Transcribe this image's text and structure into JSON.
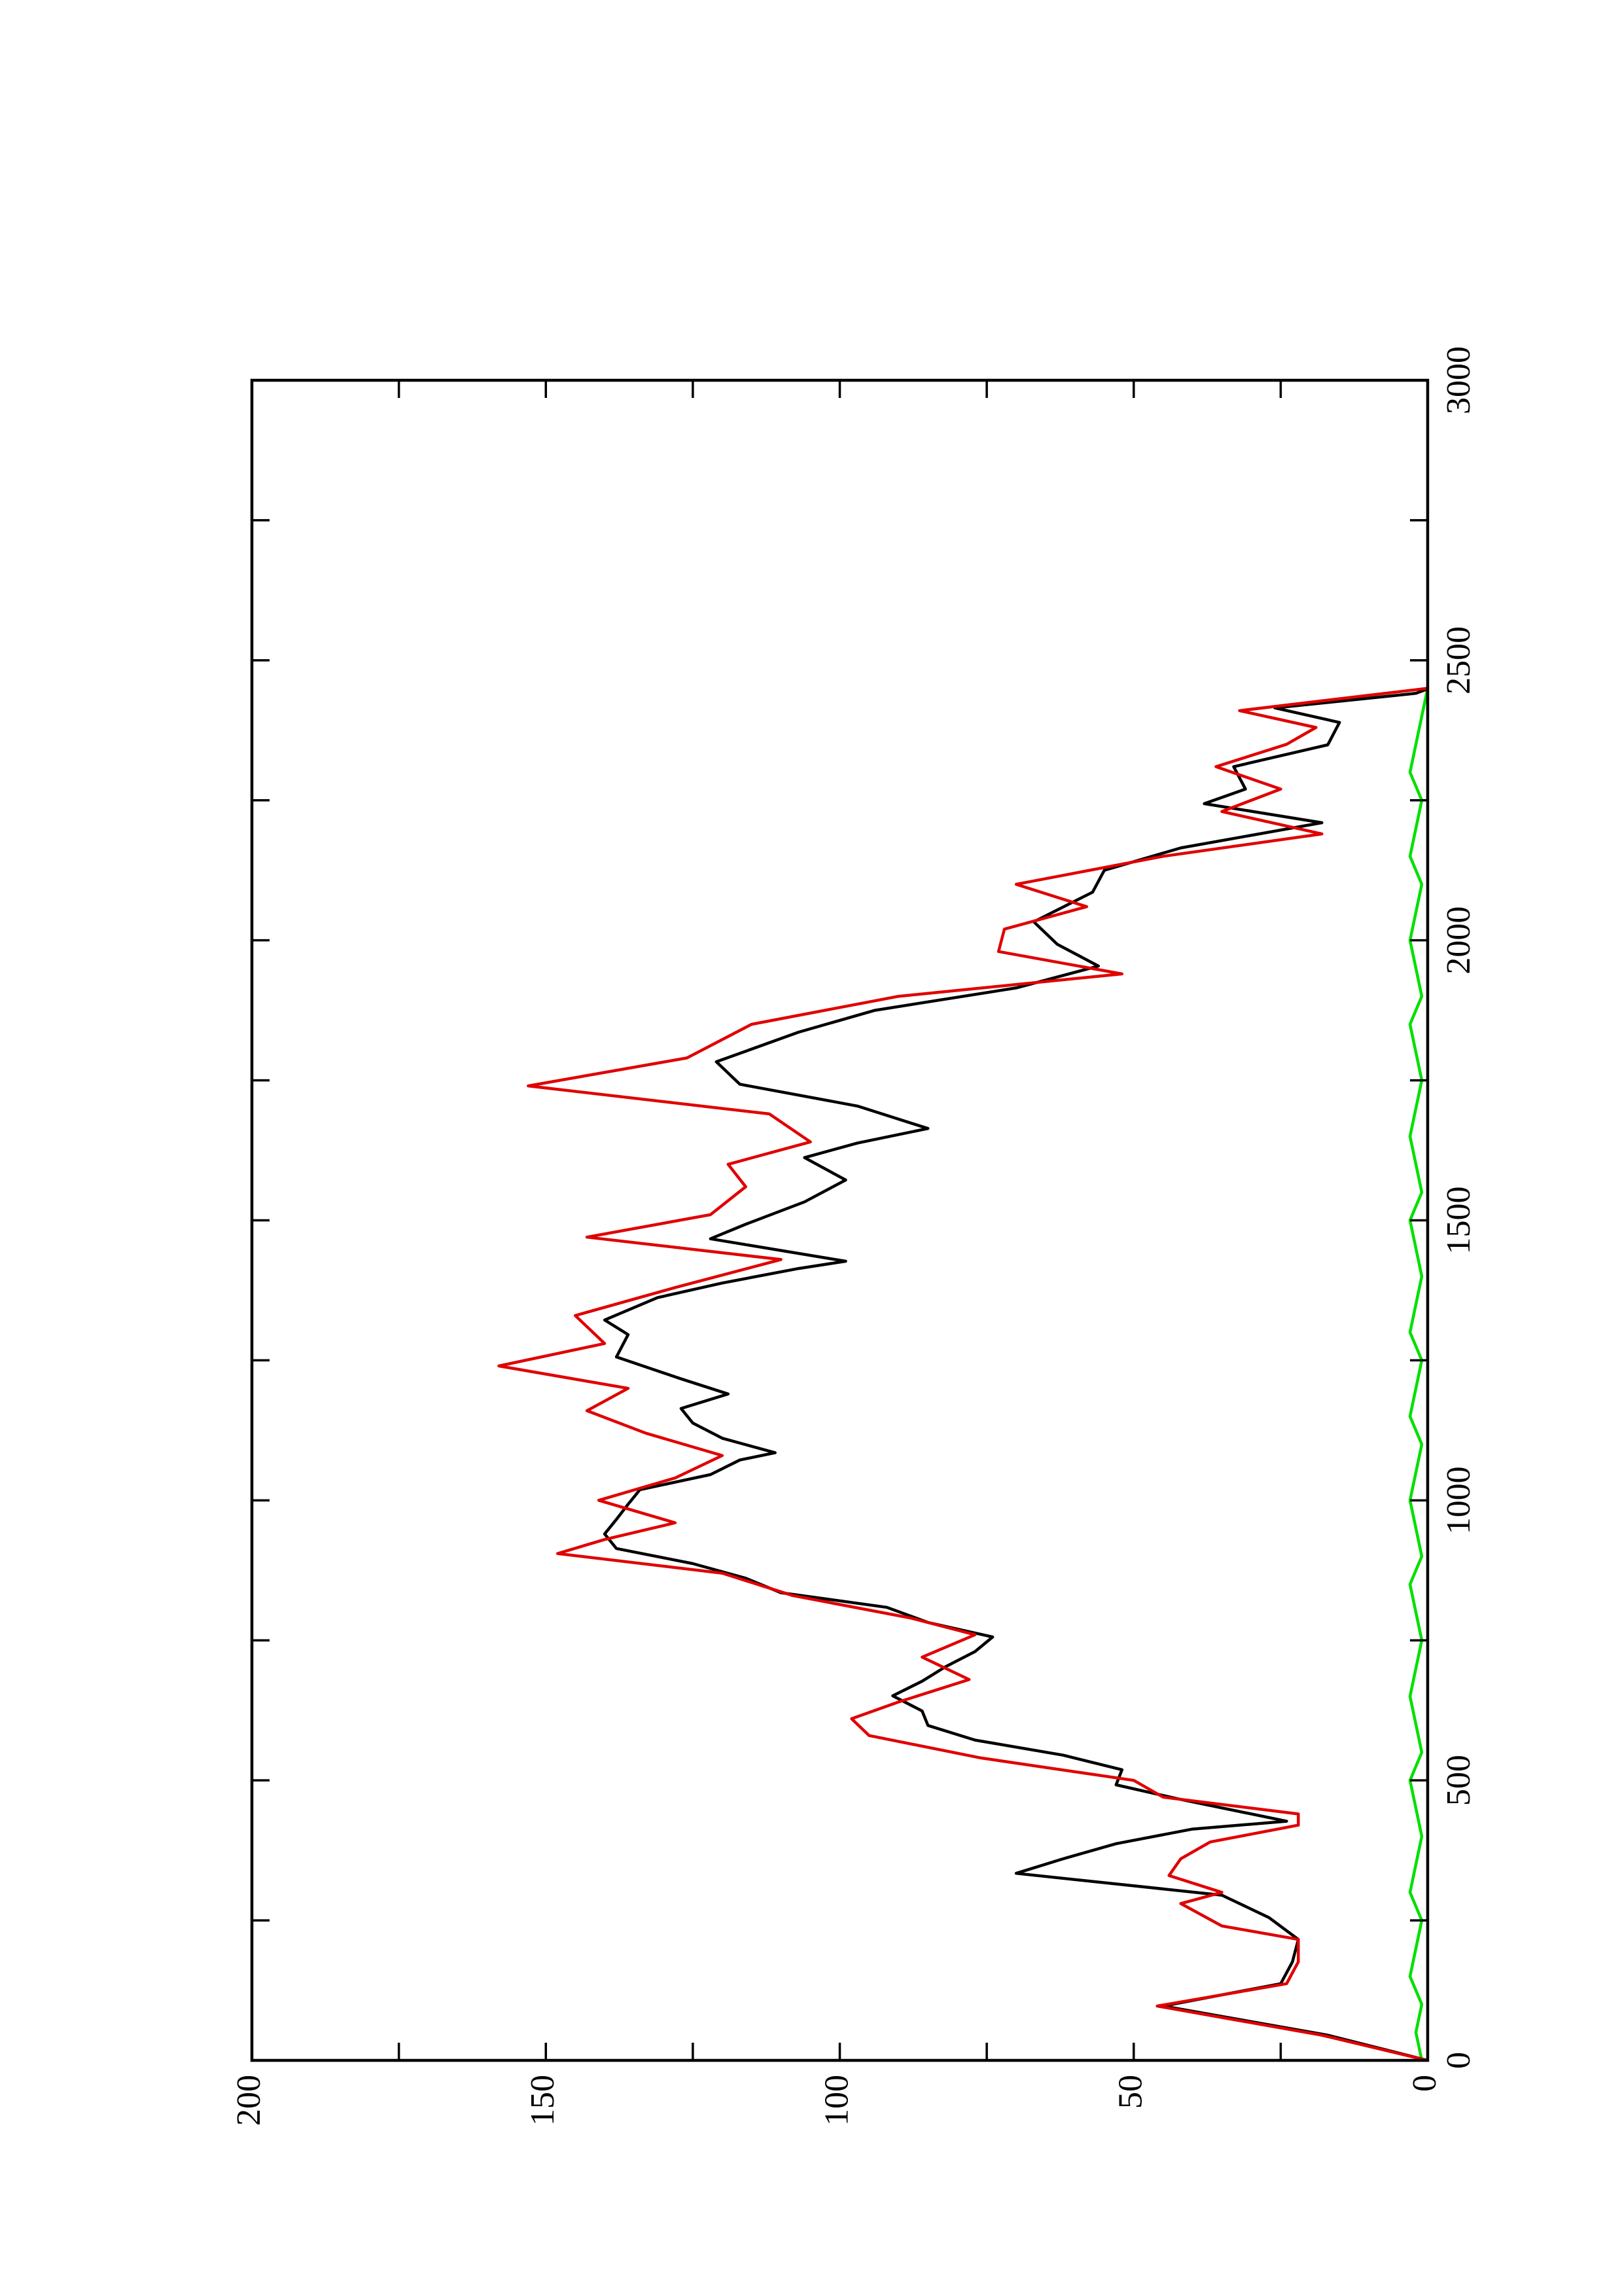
{
  "chart_data": {
    "type": "line",
    "xlim": [
      0,
      3000
    ],
    "xticks": [
      0,
      500,
      1000,
      1500,
      2000,
      2500,
      3000
    ],
    "xminorticks": [
      250,
      750,
      1250,
      1750,
      2250,
      2750
    ],
    "ylim": [
      0,
      200
    ],
    "yticks": [
      0,
      50,
      100,
      150,
      200
    ],
    "yminorticks": [
      25,
      75,
      125,
      175
    ],
    "rotation": -90,
    "series": [
      {
        "color": "#00e000",
        "x": [
          0,
          50,
          100,
          150,
          200,
          250,
          300,
          350,
          400,
          450,
          500,
          550,
          600,
          650,
          700,
          750,
          800,
          850,
          900,
          950,
          1000,
          1050,
          1100,
          1150,
          1200,
          1250,
          1300,
          1350,
          1400,
          1450,
          1500,
          1550,
          1600,
          1650,
          1700,
          1750,
          1800,
          1850,
          1900,
          1950,
          2000,
          2050,
          2100,
          2150,
          2200,
          2250,
          2300,
          2350,
          2400,
          2450
        ],
        "values": [
          1,
          2,
          1,
          3,
          2,
          1,
          3,
          2,
          1,
          2,
          3,
          1,
          2,
          3,
          2,
          1,
          2,
          3,
          1,
          2,
          3,
          2,
          1,
          3,
          2,
          1,
          3,
          2,
          1,
          2,
          3,
          1,
          2,
          3,
          2,
          1,
          2,
          3,
          1,
          2,
          3,
          2,
          1,
          3,
          2,
          1,
          3,
          2,
          1,
          0
        ]
      },
      {
        "color": "#000000",
        "x": [
          0,
          45,
          97,
          137,
          176,
          216,
          255,
          295,
          334,
          360,
          387,
          413,
          427,
          466,
          492,
          519,
          545,
          572,
          598,
          624,
          651,
          677,
          703,
          730,
          756,
          782,
          809,
          835,
          861,
          887,
          914,
          940,
          966,
          993,
          1019,
          1046,
          1072,
          1085,
          1111,
          1138,
          1164,
          1190,
          1217,
          1256,
          1296,
          1322,
          1362,
          1388,
          1414,
          1427,
          1467,
          1493,
          1533,
          1572,
          1612,
          1638,
          1664,
          1704,
          1743,
          1783,
          1836,
          1875,
          1915,
          1954,
          1993,
          2033,
          2086,
          2125,
          2165,
          2210,
          2244,
          2270,
          2310,
          2349,
          2389,
          2415,
          2441,
          2449
        ],
        "values": [
          0,
          17,
          45,
          25,
          23,
          22,
          27,
          35,
          70,
          62,
          53,
          40,
          24,
          42,
          53,
          52,
          62,
          77,
          85,
          86,
          91,
          86,
          82,
          77,
          74,
          85,
          92,
          110,
          116,
          125,
          138,
          140,
          138,
          136,
          134,
          122,
          117,
          111,
          120,
          125,
          127,
          119,
          127,
          138,
          136,
          140,
          131,
          120,
          107,
          99,
          122,
          116,
          106,
          99,
          106,
          97,
          85,
          97,
          117,
          121,
          107,
          94,
          70,
          56,
          63,
          67,
          57,
          55,
          42,
          18,
          38,
          31,
          33,
          17,
          15,
          26,
          2,
          0
        ]
      },
      {
        "color": "#e00000",
        "x": [
          0,
          45,
          97,
          137,
          176,
          216,
          240,
          280,
          300,
          330,
          360,
          390,
          420,
          440,
          470,
          500,
          540,
          580,
          610,
          640,
          680,
          720,
          760,
          790,
          830,
          870,
          905,
          930,
          960,
          1000,
          1040,
          1080,
          1120,
          1160,
          1200,
          1240,
          1280,
          1330,
          1380,
          1430,
          1470,
          1510,
          1560,
          1600,
          1640,
          1690,
          1740,
          1790,
          1850,
          1900,
          1940,
          1980,
          2020,
          2060,
          2100,
          2150,
          2190,
          2230,
          2270,
          2310,
          2350,
          2380,
          2410,
          2450
        ],
        "values": [
          0,
          18,
          46,
          24,
          22,
          22,
          35,
          42,
          35,
          44,
          42,
          37,
          22,
          22,
          45,
          50,
          76,
          95,
          98,
          90,
          78,
          86,
          77,
          88,
          108,
          120,
          148,
          140,
          128,
          141,
          128,
          120,
          133,
          143,
          136,
          158,
          140,
          145,
          128,
          110,
          143,
          122,
          116,
          119,
          105,
          112,
          153,
          126,
          115,
          90,
          52,
          73,
          72,
          58,
          70,
          45,
          18,
          35,
          25,
          36,
          24,
          19,
          32,
          0
        ]
      }
    ]
  }
}
